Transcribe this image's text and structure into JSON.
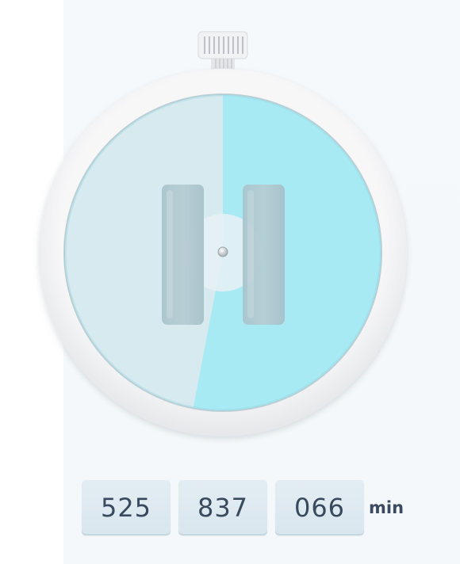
{
  "timer": {
    "progress": 0.53,
    "colors": {
      "remaining": "#a8eaf4",
      "elapsed": "#d7eaef",
      "bezel": "#f0f0f2",
      "handle": "#b0c8d0"
    }
  },
  "readout": {
    "segments": [
      "525",
      "837",
      "066"
    ],
    "unit": "min"
  }
}
